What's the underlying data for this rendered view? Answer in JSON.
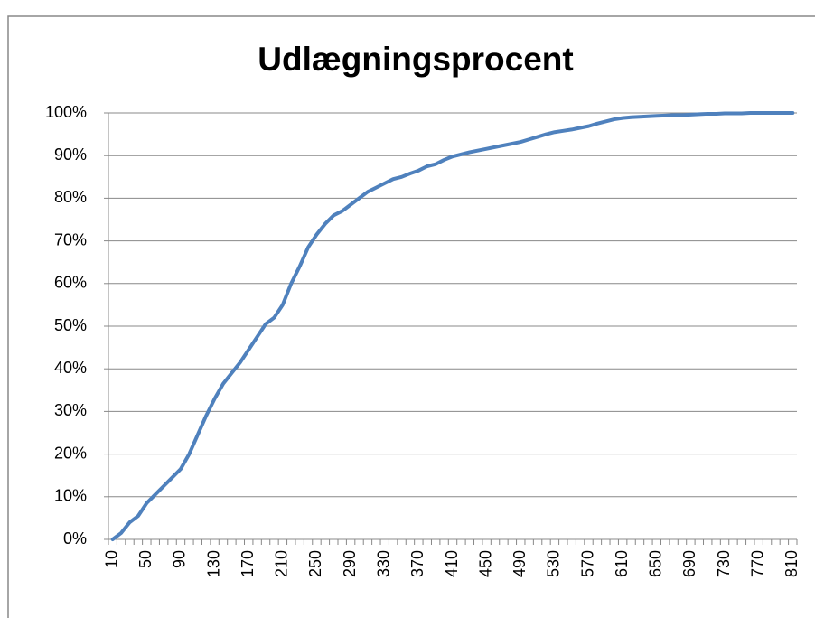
{
  "chart_data": {
    "type": "line",
    "title": "Udlægningsprocent",
    "categories": [
      "10",
      null,
      null,
      null,
      "50",
      null,
      null,
      null,
      "90",
      null,
      null,
      null,
      "130",
      null,
      null,
      null,
      "170",
      null,
      null,
      null,
      "210",
      null,
      null,
      null,
      "250",
      null,
      null,
      null,
      "290",
      null,
      null,
      null,
      "330",
      null,
      null,
      null,
      "370",
      null,
      null,
      null,
      "410",
      null,
      null,
      null,
      "450",
      null,
      null,
      null,
      "490",
      null,
      null,
      null,
      "530",
      null,
      null,
      null,
      "570",
      null,
      null,
      null,
      "610",
      null,
      null,
      null,
      "650",
      null,
      null,
      null,
      "690",
      null,
      null,
      null,
      "730",
      null,
      null,
      null,
      "770",
      null,
      null,
      null,
      "810"
    ],
    "series": [
      {
        "color": "#4f81bd",
        "values": [
          0,
          1.5,
          4,
          5.5,
          8.5,
          10.5,
          12.5,
          14.5,
          16.5,
          20,
          24.5,
          29,
          33,
          36.5,
          39,
          41.5,
          44.5,
          47.5,
          50.5,
          52,
          55,
          60,
          64,
          68.5,
          71.5,
          74,
          76,
          77,
          78.5,
          80,
          81.5,
          82.5,
          83.5,
          84.5,
          85,
          85.8,
          86.5,
          87.5,
          88,
          89,
          89.8,
          90.3,
          90.8,
          91.2,
          91.6,
          92,
          92.4,
          92.8,
          93.2,
          93.8,
          94.4,
          95,
          95.5,
          95.8,
          96.1,
          96.5,
          96.9,
          97.5,
          98,
          98.5,
          98.8,
          99,
          99.1,
          99.2,
          99.3,
          99.4,
          99.5,
          99.5,
          99.6,
          99.7,
          99.8,
          99.8,
          99.9,
          99.9,
          99.9,
          100,
          100,
          100,
          100,
          100,
          100
        ]
      }
    ],
    "ylim": [
      0,
      100
    ],
    "yticks": [
      {
        "value": 0,
        "label": "0%"
      },
      {
        "value": 10,
        "label": "10%"
      },
      {
        "value": 20,
        "label": "20%"
      },
      {
        "value": 30,
        "label": "30%"
      },
      {
        "value": 40,
        "label": "40%"
      },
      {
        "value": 50,
        "label": "50%"
      },
      {
        "value": 60,
        "label": "60%"
      },
      {
        "value": 70,
        "label": "70%"
      },
      {
        "value": 80,
        "label": "80%"
      },
      {
        "value": 90,
        "label": "90%"
      },
      {
        "value": 100,
        "label": "100%"
      }
    ],
    "grid": true
  }
}
